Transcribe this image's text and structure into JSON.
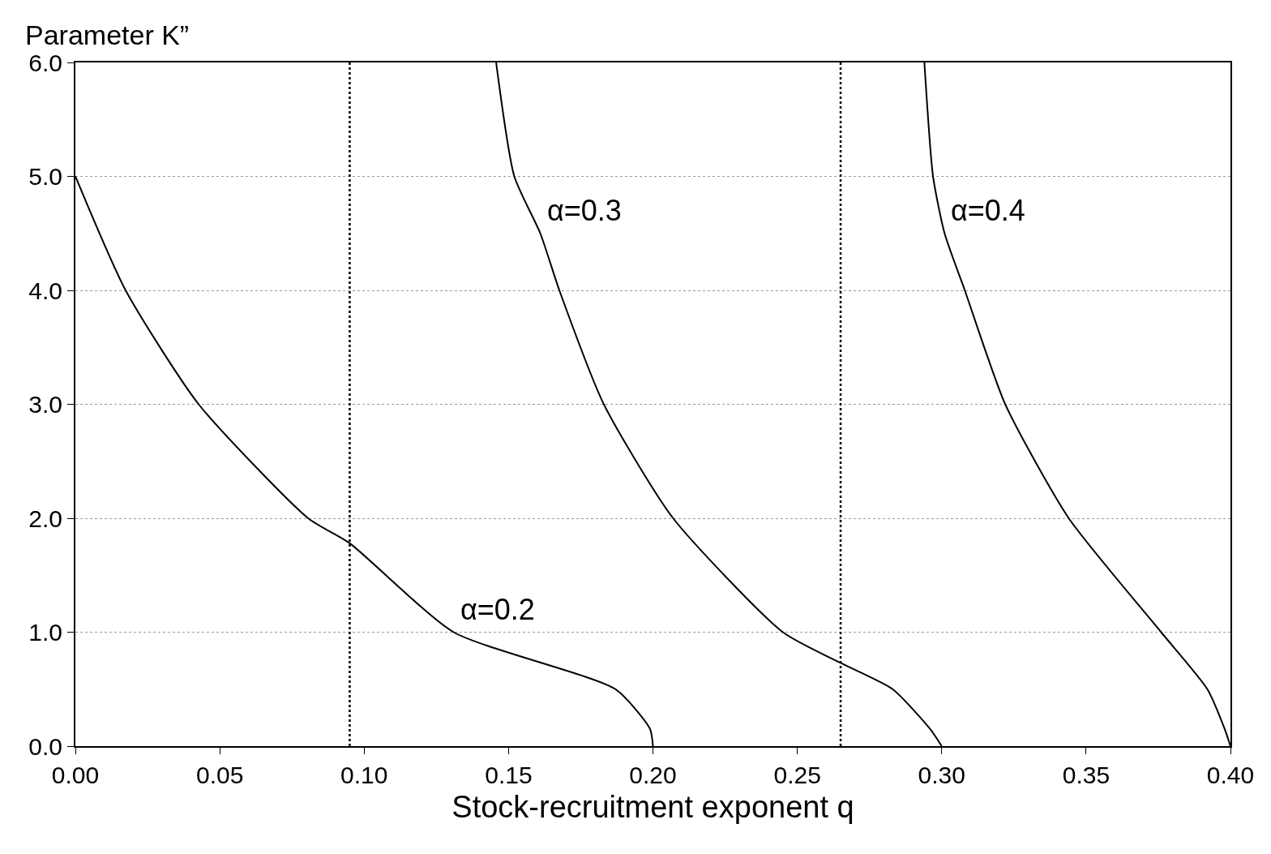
{
  "chart_data": {
    "type": "line",
    "ylabel": "Parameter K”",
    "xlabel": "Stock-recruitment exponent q",
    "series": [
      {
        "color": "#000000",
        "x": [
          0,
          0.0174,
          0.0427,
          0.0806,
          0.095,
          0.131,
          0.187,
          0.199,
          0.2
        ],
        "values": [
          5,
          4,
          3,
          2,
          1.78,
          1,
          0.5,
          0.15,
          0
        ]
      },
      {
        "color": "#000000",
        "x": [
          0.1457,
          0.152,
          0.161,
          0.1676,
          0.183,
          0.207,
          0.245,
          0.265,
          0.283,
          0.296,
          0.3
        ],
        "values": [
          6,
          5,
          4.5,
          4,
          3,
          2,
          1,
          0.73,
          0.5,
          0.15,
          0
        ]
      },
      {
        "color": "#000000",
        "x": [
          0.294,
          0.297,
          0.301,
          0.308,
          0.322,
          0.344,
          0.376,
          0.392,
          0.398,
          0.4
        ],
        "values": [
          6,
          5,
          4.5,
          4,
          3,
          2,
          1,
          0.5,
          0.15,
          0
        ]
      }
    ],
    "annotations": [
      {
        "text": "α=0.2",
        "x": 0.131,
        "y": 1
      },
      {
        "text": "α=0.3",
        "x": 0.161,
        "y": 4.5
      },
      {
        "text": "α=0.4",
        "x": 0.301,
        "y": 4.5
      }
    ],
    "ref_lines": [
      {
        "axis": "x",
        "value": 0.095,
        "line_style": "dotted",
        "color": "#000000"
      },
      {
        "axis": "x",
        "value": 0.265,
        "line_style": "dotted",
        "color": "#000000"
      }
    ],
    "xlim": [
      0,
      0.4
    ],
    "ylim": [
      0,
      6
    ],
    "xticks": [
      {
        "value": 0,
        "label": "0.00"
      },
      {
        "value": 0.05,
        "label": "0.05"
      },
      {
        "value": 0.1,
        "label": "0.10"
      },
      {
        "value": 0.15,
        "label": "0.15"
      },
      {
        "value": 0.2,
        "label": "0.20"
      },
      {
        "value": 0.25,
        "label": "0.25"
      },
      {
        "value": 0.3,
        "label": "0.30"
      },
      {
        "value": 0.35,
        "label": "0.35"
      },
      {
        "value": 0.4,
        "label": "0.40"
      }
    ],
    "yticks": [
      {
        "value": 0,
        "label": "0.0"
      },
      {
        "value": 1,
        "label": "1.0"
      },
      {
        "value": 2,
        "label": "2.0"
      },
      {
        "value": 3,
        "label": "3.0"
      },
      {
        "value": 4,
        "label": "4.0"
      },
      {
        "value": 5,
        "label": "5.0"
      },
      {
        "value": 6,
        "label": "6.0"
      }
    ],
    "grid": "y",
    "marker": "none",
    "line_style": "solid"
  }
}
